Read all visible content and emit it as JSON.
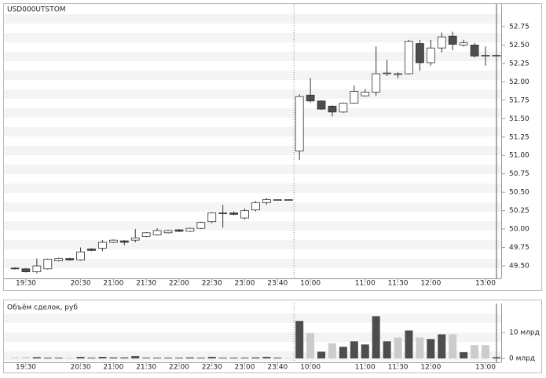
{
  "chart_data": [
    {
      "type": "candlestick",
      "title": "USD000UTSTOM",
      "categories": [
        null,
        "19:30",
        null,
        null,
        null,
        null,
        "20:30",
        null,
        null,
        "21:00",
        null,
        null,
        "21:30",
        null,
        null,
        "22:00",
        null,
        null,
        "22:30",
        null,
        null,
        "23:00",
        null,
        null,
        "23:40",
        null,
        null,
        "10:00",
        null,
        null,
        null,
        null,
        "11:00",
        null,
        null,
        "11:30",
        null,
        null,
        "12:00",
        null,
        null,
        null,
        null,
        "13:00",
        null
      ],
      "open": [
        49.47,
        49.46,
        49.42,
        49.46,
        49.57,
        49.6,
        49.58,
        49.73,
        49.74,
        49.82,
        49.84,
        49.85,
        49.9,
        49.92,
        49.95,
        49.99,
        49.97,
        50.01,
        50.1,
        50.22,
        50.22,
        50.15,
        50.26,
        50.36,
        50.4,
        50.4,
        51.06,
        51.82,
        51.74,
        51.67,
        51.59,
        51.71,
        51.81,
        51.86,
        52.12,
        52.11,
        52.11,
        52.52,
        52.26,
        52.46,
        52.62,
        52.5,
        52.5,
        52.36,
        52.36
      ],
      "close": [
        49.46,
        49.42,
        49.5,
        49.59,
        49.6,
        49.58,
        49.69,
        49.71,
        49.82,
        49.85,
        49.82,
        49.88,
        49.95,
        49.98,
        49.98,
        49.97,
        50.01,
        50.09,
        50.22,
        50.21,
        50.2,
        50.25,
        50.36,
        50.4,
        50.4,
        50.4,
        51.8,
        51.74,
        51.63,
        51.59,
        51.71,
        51.87,
        51.86,
        52.11,
        52.12,
        52.11,
        52.55,
        52.26,
        52.46,
        52.61,
        52.51,
        52.53,
        52.35,
        52.36,
        52.36
      ],
      "high": [
        49.48,
        49.47,
        49.6,
        49.6,
        49.61,
        49.61,
        49.75,
        49.74,
        49.85,
        49.86,
        49.85,
        50.0,
        49.96,
        50.01,
        49.99,
        50.0,
        50.02,
        50.1,
        50.23,
        50.33,
        50.24,
        50.28,
        50.38,
        50.42,
        50.4,
        50.4,
        51.83,
        52.05,
        51.75,
        51.68,
        51.72,
        51.95,
        51.9,
        52.48,
        52.3,
        52.13,
        52.57,
        52.57,
        52.57,
        52.67,
        52.68,
        52.57,
        52.53,
        52.48,
        52.37
      ],
      "low": [
        49.45,
        49.41,
        49.4,
        49.45,
        49.56,
        49.57,
        49.57,
        49.7,
        49.7,
        49.81,
        49.78,
        49.82,
        49.89,
        49.91,
        49.94,
        49.96,
        49.96,
        50.0,
        50.08,
        50.02,
        50.19,
        50.13,
        50.24,
        50.33,
        50.4,
        50.4,
        50.94,
        51.72,
        51.62,
        51.53,
        51.58,
        51.7,
        51.8,
        51.81,
        52.08,
        52.05,
        52.1,
        52.15,
        52.22,
        52.4,
        52.43,
        52.48,
        52.33,
        52.22,
        52.36
      ],
      "up_color": "#ffffff",
      "down_color": "#4d4d4d",
      "ylim": [
        49.33,
        52.92
      ],
      "yticks": [
        {
          "value": 49.5,
          "label": "49.50"
        },
        {
          "value": 49.75,
          "label": "49.75"
        },
        {
          "value": 50,
          "label": "50.00"
        },
        {
          "value": 50.25,
          "label": "50.25"
        },
        {
          "value": 50.5,
          "label": "50.50"
        },
        {
          "value": 50.75,
          "label": "50.75"
        },
        {
          "value": 51,
          "label": "51.00"
        },
        {
          "value": 51.25,
          "label": "51.25"
        },
        {
          "value": 51.5,
          "label": "51.50"
        },
        {
          "value": 51.75,
          "label": "51.75"
        },
        {
          "value": 52,
          "label": "52.00"
        },
        {
          "value": 52.25,
          "label": "52.25"
        },
        {
          "value": 52.5,
          "label": "52.50"
        },
        {
          "value": 52.75,
          "label": "52.75"
        }
      ]
    },
    {
      "type": "bar",
      "title": "Объём сделок, руб",
      "values": [
        0.3,
        0.5,
        0.5,
        0.3,
        0.3,
        0.3,
        0.6,
        0.3,
        0.6,
        0.4,
        0.4,
        0.9,
        0.3,
        0.3,
        0.3,
        0.3,
        0.4,
        0.3,
        0.6,
        0.3,
        0.3,
        0.3,
        0.4,
        0.6,
        0.3,
        0.1,
        14.5,
        9.8,
        2.6,
        5.9,
        4.5,
        6.6,
        5.4,
        16.3,
        6.6,
        8.1,
        10.8,
        8.1,
        7.5,
        9.3,
        9.3,
        2.4,
        5.1,
        5.1,
        0.5
      ],
      "colors": [
        "#cccccc",
        "#cccccc",
        "#4d4d4d",
        "#4d4d4d",
        "#4d4d4d",
        "#cccccc",
        "#4d4d4d",
        "#4d4d4d",
        "#4d4d4d",
        "#4d4d4d",
        "#4d4d4d",
        "#4d4d4d",
        "#4d4d4d",
        "#4d4d4d",
        "#4d4d4d",
        "#4d4d4d",
        "#4d4d4d",
        "#4d4d4d",
        "#4d4d4d",
        "#4d4d4d",
        "#4d4d4d",
        "#4d4d4d",
        "#4d4d4d",
        "#4d4d4d",
        "#4d4d4d",
        "#cccccc",
        "#4d4d4d",
        "#cccccc",
        "#4d4d4d",
        "#cccccc",
        "#4d4d4d",
        "#4d4d4d",
        "#4d4d4d",
        "#4d4d4d",
        "#4d4d4d",
        "#cccccc",
        "#4d4d4d",
        "#cccccc",
        "#4d4d4d",
        "#4d4d4d",
        "#cccccc",
        "#4d4d4d",
        "#cccccc",
        "#cccccc",
        "#4d4d4d"
      ],
      "ylim": [
        -1.5,
        17.3
      ],
      "yticks": [
        {
          "value": 0,
          "label": "0 млрд"
        },
        {
          "value": 10,
          "label": "10 млрд"
        }
      ]
    }
  ]
}
